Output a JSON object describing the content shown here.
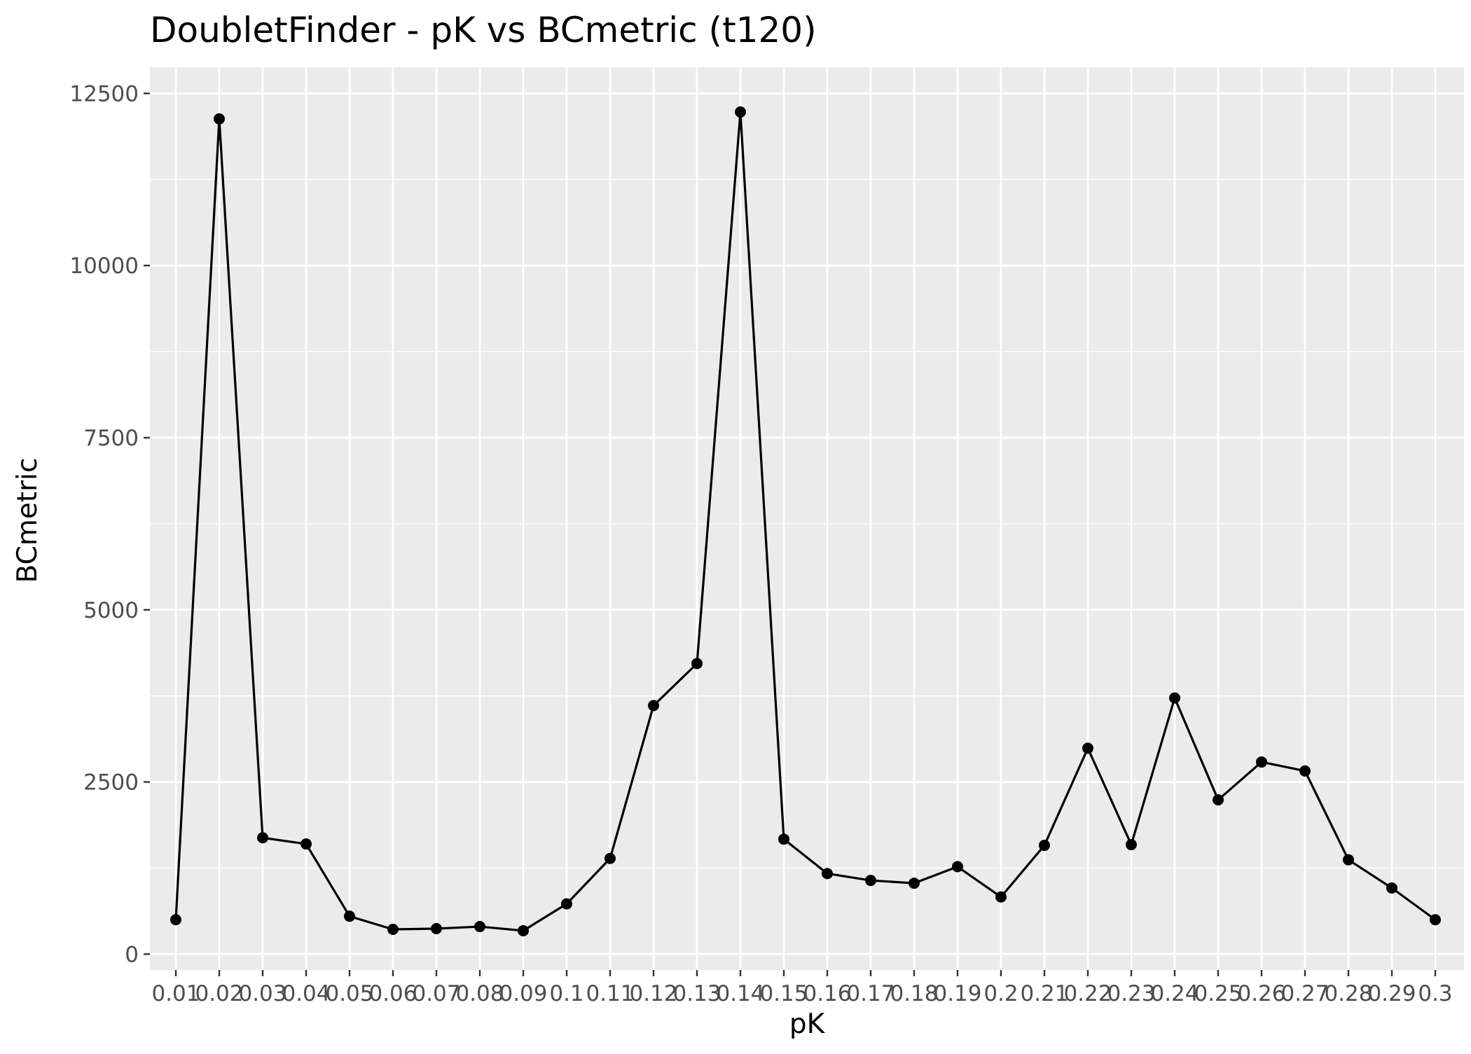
{
  "chart_data": {
    "type": "line",
    "title": "DoubletFinder - pK vs BCmetric (t120)",
    "xlabel": "pK",
    "ylabel": "BCmetric",
    "categories": [
      "0.01",
      "0.02",
      "0.03",
      "0.04",
      "0.05",
      "0.06",
      "0.07",
      "0.08",
      "0.09",
      "0.1",
      "0.11",
      "0.12",
      "0.13",
      "0.14",
      "0.15",
      "0.16",
      "0.17",
      "0.18",
      "0.19",
      "0.2",
      "0.21",
      "0.22",
      "0.23",
      "0.24",
      "0.25",
      "0.26",
      "0.27",
      "0.28",
      "0.29",
      "0.3"
    ],
    "series": [
      {
        "values": [
          500,
          12130,
          1690,
          1600,
          550,
          360,
          370,
          400,
          340,
          730,
          1390,
          3610,
          4220,
          12230,
          1670,
          1170,
          1070,
          1030,
          1270,
          830,
          1580,
          2990,
          1590,
          3720,
          2240,
          2790,
          2660,
          1370,
          960,
          500
        ]
      }
    ],
    "ylim": [
      -230,
      12880
    ],
    "yticks": [
      0,
      2500,
      5000,
      7500,
      10000,
      12500
    ],
    "ytick_labels": [
      "0",
      "2500",
      "5000",
      "7500",
      "10000",
      "12500"
    ],
    "grid": true,
    "background": "#ebebeb",
    "grid_color": "#ffffff",
    "line_color": "#000000",
    "point_color": "#000000",
    "legend": "none"
  }
}
